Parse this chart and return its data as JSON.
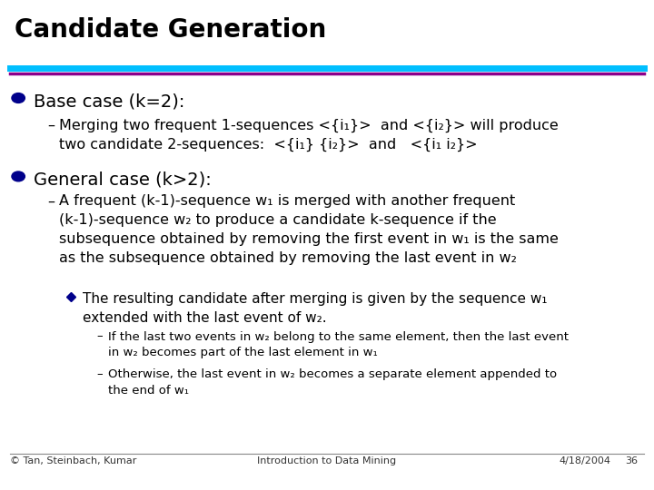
{
  "title": "Candidate Generation",
  "title_fontsize": 20,
  "bg_color": "#ffffff",
  "line1_color": "#00BFFF",
  "line2_color": "#8B008B",
  "bullet_color": "#00008B",
  "bullet1_text": "Base case (k=2):",
  "bullet1_fontsize": 14,
  "sub1_text": "Merging two frequent 1-sequences <{i₁}>  and <{i₂}> will produce\ntwo candidate 2-sequences:  <{i₁} {i₂}>  and   <{i₁ i₂}>",
  "sub1_fontsize": 11.5,
  "bullet2_text": "General case (k>2):",
  "bullet2_fontsize": 14,
  "sub2_text": "A frequent (k-1)-sequence w₁ is merged with another frequent\n(k-1)-sequence w₂ to produce a candidate k-sequence if the\nsubsequence obtained by removing the first event in w₁ is the same\nas the subsequence obtained by removing the last event in w₂",
  "sub2_fontsize": 11.5,
  "sub3_text": "The resulting candidate after merging is given by the sequence w₁\nextended with the last event of w₂.",
  "sub3_fontsize": 11,
  "sub4a_text": "If the last two events in w₂ belong to the same element, then the last event\nin w₂ becomes part of the last element in w₁",
  "sub4a_fontsize": 9.5,
  "sub4b_text": "Otherwise, the last event in w₂ becomes a separate element appended to\nthe end of w₁",
  "sub4b_fontsize": 9.5,
  "footer_left": "© Tan, Steinbach, Kumar",
  "footer_center": "Introduction to Data Mining",
  "footer_right": "4/18/2004",
  "footer_page": "36",
  "footer_fontsize": 8
}
